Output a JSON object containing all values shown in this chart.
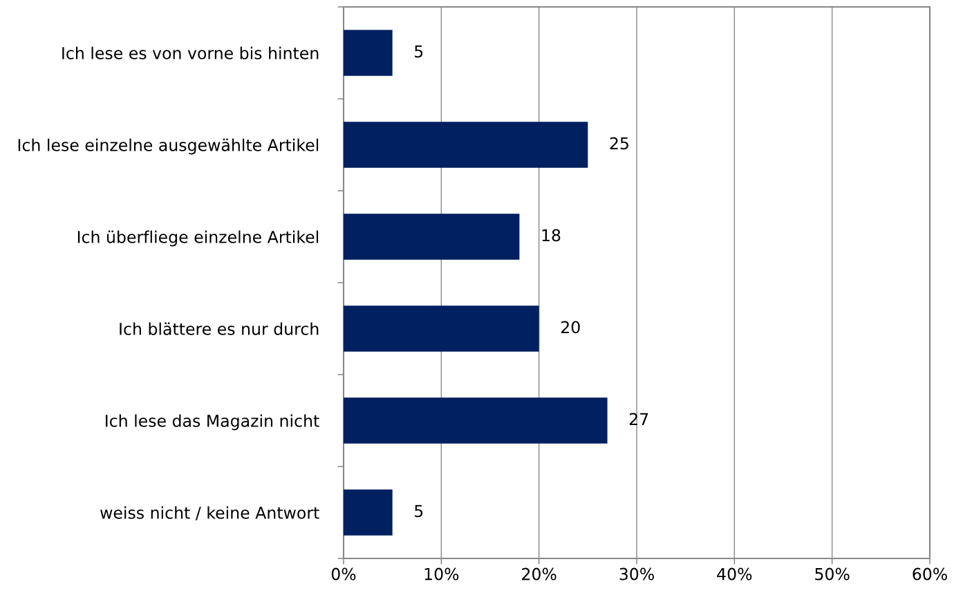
{
  "chart_data": {
    "type": "bar",
    "orientation": "horizontal",
    "categories": [
      "Ich lese es von vorne bis hinten",
      "Ich lese einzelne ausgewählte Artikel",
      "Ich überfliege einzelne Artikel",
      "Ich blättere es nur durch",
      "Ich lese das Magazin nicht",
      "weiss nicht / keine Antwort"
    ],
    "values": [
      5,
      25,
      18,
      20,
      27,
      5
    ],
    "color": "#002060",
    "xlim": [
      0,
      60
    ],
    "xticks": [
      {
        "value": 0,
        "label": "0%"
      },
      {
        "value": 10,
        "label": "10%"
      },
      {
        "value": 20,
        "label": "20%"
      },
      {
        "value": 30,
        "label": "30%"
      },
      {
        "value": 40,
        "label": "40%"
      },
      {
        "value": 50,
        "label": "50%"
      },
      {
        "value": 60,
        "label": "60%"
      }
    ],
    "grid": "x",
    "data_labels": true,
    "legend": false
  }
}
